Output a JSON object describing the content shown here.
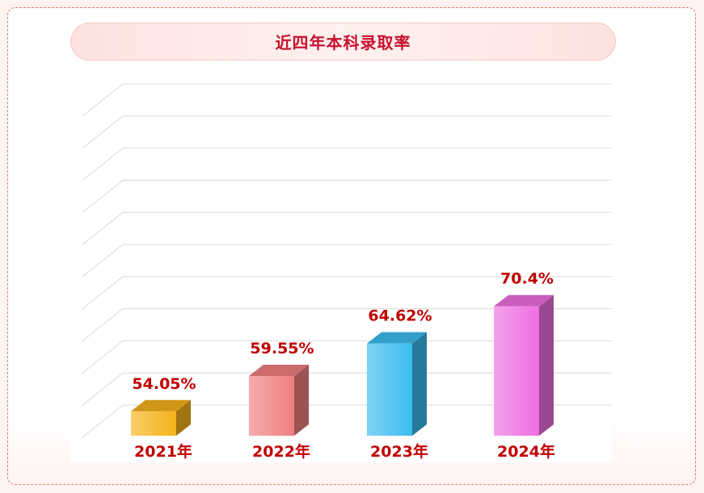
{
  "header": {
    "title": "近四年本科录取率"
  },
  "chart_data": {
    "type": "bar",
    "title": "近四年本科录取率",
    "xlabel": "",
    "ylabel": "",
    "grid": true,
    "categories": [
      "2021年",
      "2022年",
      "2023年",
      "2024年"
    ],
    "values": [
      54.05,
      59.55,
      64.62,
      70.4
    ],
    "value_labels": [
      "54.05%",
      "59.55%",
      "64.62%",
      "70.4%"
    ],
    "colors": [
      "#f5b21a",
      "#f07f80",
      "#3cbcf0",
      "#ee6fe0"
    ],
    "label_color": "#c00000"
  }
}
